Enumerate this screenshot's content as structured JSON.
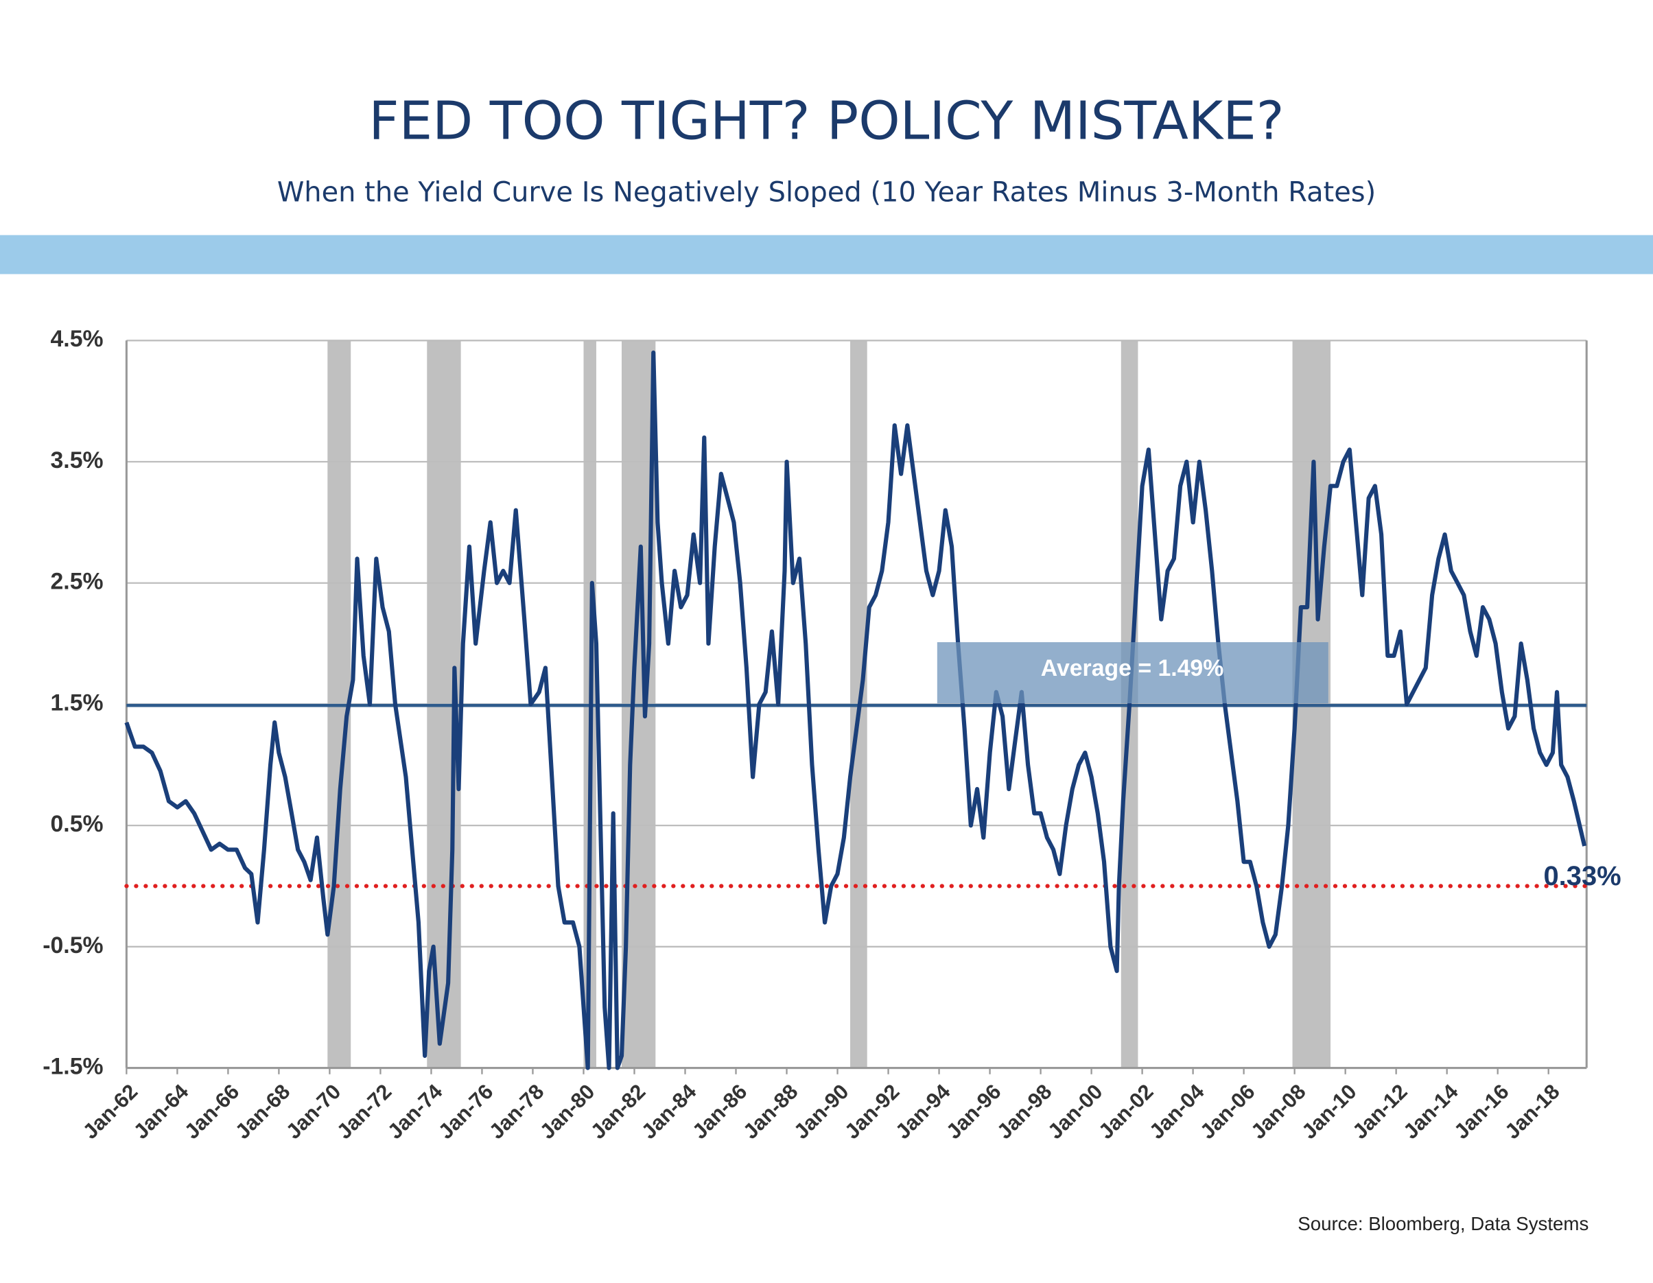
{
  "chart_data": {
    "type": "line",
    "title": "FED TOO TIGHT? POLICY MISTAKE?",
    "subtitle": "When the Yield Curve Is Negatively Sloped (10 Year Rates Minus 3-Month Rates)",
    "source": "Source:  Bloomberg, Data Systems",
    "xlim": [
      "Jan-62",
      "Jul-19"
    ],
    "xticks": [
      "Jan-62",
      "Jan-64",
      "Jan-66",
      "Jan-68",
      "Jan-70",
      "Jan-72",
      "Jan-74",
      "Jan-76",
      "Jan-78",
      "Jan-80",
      "Jan-82",
      "Jan-84",
      "Jan-86",
      "Jan-88",
      "Jan-90",
      "Jan-92",
      "Jan-94",
      "Jan-96",
      "Jan-98",
      "Jan-00",
      "Jan-02",
      "Jan-04",
      "Jan-06",
      "Jan-08",
      "Jan-10",
      "Jan-12",
      "Jan-14",
      "Jan-16",
      "Jan-18"
    ],
    "ylim": [
      -1.5,
      4.5
    ],
    "yticks": [
      {
        "value": -1.5,
        "label": "-1.5%"
      },
      {
        "value": -0.5,
        "label": "-0.5%"
      },
      {
        "value": 0.5,
        "label": "0.5%"
      },
      {
        "value": 1.5,
        "label": "1.5%"
      },
      {
        "value": 2.5,
        "label": "2.5%"
      },
      {
        "value": 3.5,
        "label": "3.5%"
      },
      {
        "value": 4.5,
        "label": "4.5%"
      }
    ],
    "grid": true,
    "recessions": [
      [
        "Dec-69",
        "Nov-70"
      ],
      [
        "Nov-73",
        "Mar-75"
      ],
      [
        "Jan-80",
        "Jul-80"
      ],
      [
        "Jul-81",
        "Nov-82"
      ],
      [
        "Jul-90",
        "Mar-91"
      ],
      [
        "Mar-01",
        "Nov-01"
      ],
      [
        "Dec-07",
        "Jun-09"
      ]
    ],
    "recession_color": "#c0c0c0",
    "reference_lines": [
      {
        "value": 1.49,
        "color": "#2e5b8c",
        "style": "solid"
      },
      {
        "value": 0,
        "color": "#e02020",
        "style": "dotted"
      }
    ],
    "annotations": [
      {
        "text": "Average = 1.49%"
      },
      {
        "text": "0.33%"
      }
    ],
    "series": [
      {
        "color": "#1a3f7a",
        "x": [
          "Jan-62",
          "May-62",
          "Sep-62",
          "Jan-63",
          "May-63",
          "Sep-63",
          "Jan-64",
          "May-64",
          "Sep-64",
          "Jan-65",
          "May-65",
          "Sep-65",
          "Jan-66",
          "May-66",
          "Sep-66",
          "Dec-66",
          "Mar-67",
          "Jun-67",
          "Sep-67",
          "Nov-67",
          "Jan-68",
          "Apr-68",
          "Jul-68",
          "Oct-68",
          "Jan-69",
          "Apr-69",
          "Jul-69",
          "Oct-69",
          "Dec-69",
          "Mar-70",
          "Jun-70",
          "Sep-70",
          "Dec-70",
          "Feb-71",
          "May-71",
          "Aug-71",
          "Nov-71",
          "Feb-72",
          "May-72",
          "Aug-72",
          "Jan-73",
          "Apr-73",
          "Jul-73",
          "Oct-73",
          "Dec-73",
          "Feb-74",
          "May-74",
          "Sep-74",
          "Nov-74",
          "Dec-74",
          "Feb-75",
          "Apr-75",
          "Jul-75",
          "Oct-75",
          "Feb-76",
          "May-76",
          "Aug-76",
          "Nov-76",
          "Feb-77",
          "May-77",
          "Sep-77",
          "Dec-77",
          "Apr-78",
          "Jul-78",
          "Oct-78",
          "Jan-79",
          "Apr-79",
          "Aug-79",
          "Nov-79",
          "Jan-80",
          "Mar-80",
          "May-80",
          "Jul-80",
          "Sep-80",
          "Nov-80",
          "Jan-81",
          "Mar-81",
          "May-81",
          "Jul-81",
          "Sep-81",
          "Nov-81",
          "Jan-82",
          "Apr-82",
          "Jun-82",
          "Aug-82",
          "Oct-82",
          "Dec-82",
          "Feb-83",
          "May-83",
          "Aug-83",
          "Nov-83",
          "Feb-84",
          "May-84",
          "Aug-84",
          "Oct-84",
          "Dec-84",
          "Mar-85",
          "Jun-85",
          "Sep-85",
          "Dec-85",
          "Mar-86",
          "Jun-86",
          "Sep-86",
          "Dec-86",
          "Mar-87",
          "Jun-87",
          "Sep-87",
          "Dec-87",
          "Jan-88",
          "Apr-88",
          "Jul-88",
          "Oct-88",
          "Jan-89",
          "Apr-89",
          "Jul-89",
          "Oct-89",
          "Jan-90",
          "Apr-90",
          "Jul-90",
          "Oct-90",
          "Jan-91",
          "Apr-91",
          "Jul-91",
          "Oct-91",
          "Jan-92",
          "Apr-92",
          "Jul-92",
          "Oct-92",
          "Jan-93",
          "Apr-93",
          "Jul-93",
          "Oct-93",
          "Jan-94",
          "Apr-94",
          "Jul-94",
          "Oct-94",
          "Jan-95",
          "Apr-95",
          "Jul-95",
          "Oct-95",
          "Jan-96",
          "Apr-96",
          "Jul-96",
          "Oct-96",
          "Jan-97",
          "Apr-97",
          "Jul-97",
          "Oct-97",
          "Jan-98",
          "Apr-98",
          "Jul-98",
          "Oct-98",
          "Jan-99",
          "Apr-99",
          "Jul-99",
          "Oct-99",
          "Jan-00",
          "Apr-00",
          "Jul-00",
          "Oct-00",
          "Jan-01",
          "Feb-01",
          "Apr-01",
          "Jul-01",
          "Oct-01",
          "Jan-02",
          "Apr-02",
          "Jul-02",
          "Oct-02",
          "Jan-03",
          "Apr-03",
          "Jul-03",
          "Oct-03",
          "Jan-04",
          "Apr-04",
          "Jul-04",
          "Oct-04",
          "Jan-05",
          "Apr-05",
          "Jul-05",
          "Oct-05",
          "Jan-06",
          "Apr-06",
          "Jul-06",
          "Oct-06",
          "Jan-07",
          "Apr-07",
          "Jul-07",
          "Oct-07",
          "Jan-08",
          "Apr-08",
          "Jul-08",
          "Oct-08",
          "Dec-08",
          "Mar-09",
          "Jun-09",
          "Sep-09",
          "Dec-09",
          "Mar-10",
          "Jun-10",
          "Sep-10",
          "Dec-10",
          "Mar-11",
          "Jun-11",
          "Sep-11",
          "Dec-11",
          "Mar-12",
          "Jun-12",
          "Sep-12",
          "Dec-12",
          "Mar-13",
          "Jun-13",
          "Sep-13",
          "Dec-13",
          "Mar-14",
          "Jun-14",
          "Sep-14",
          "Dec-14",
          "Mar-15",
          "Jun-15",
          "Sep-15",
          "Dec-15",
          "Mar-16",
          "Jun-16",
          "Sep-16",
          "Dec-16",
          "Mar-17",
          "Jun-17",
          "Sep-17",
          "Dec-17",
          "Mar-18",
          "May-18",
          "Jul-18",
          "Oct-18",
          "Jan-19",
          "Jun-19"
        ],
        "values": [
          1.35,
          1.15,
          1.15,
          1.1,
          0.95,
          0.7,
          0.65,
          0.7,
          0.6,
          0.45,
          0.3,
          0.35,
          0.3,
          0.3,
          0.15,
          0.1,
          -0.3,
          0.3,
          1.0,
          1.35,
          1.1,
          0.9,
          0.6,
          0.3,
          0.2,
          0.05,
          0.4,
          -0.1,
          -0.4,
          0.0,
          0.8,
          1.4,
          1.7,
          2.7,
          1.9,
          1.5,
          2.7,
          2.3,
          2.1,
          1.5,
          0.9,
          0.3,
          -0.3,
          -1.4,
          -0.7,
          -0.5,
          -1.3,
          -0.8,
          0.3,
          1.8,
          0.8,
          2.0,
          2.8,
          2.0,
          2.6,
          3.0,
          2.5,
          2.6,
          2.5,
          3.1,
          2.2,
          1.5,
          1.6,
          1.8,
          0.9,
          0.0,
          -0.3,
          -0.3,
          -0.5,
          -1.0,
          -1.5,
          2.5,
          2.0,
          0.5,
          -1.0,
          -1.5,
          0.6,
          -1.5,
          -1.4,
          -0.5,
          1.0,
          1.8,
          2.8,
          1.4,
          2.0,
          4.4,
          3.0,
          2.5,
          2.0,
          2.6,
          2.3,
          2.4,
          2.9,
          2.5,
          3.7,
          2.0,
          2.8,
          3.4,
          3.2,
          3.0,
          2.5,
          1.8,
          0.9,
          1.5,
          1.6,
          2.1,
          1.5,
          2.6,
          3.5,
          2.5,
          2.7,
          2.0,
          1.0,
          0.3,
          -0.3,
          0.0,
          0.1,
          0.4,
          0.9,
          1.3,
          1.7,
          2.3,
          2.4,
          2.6,
          3.0,
          3.8,
          3.4,
          3.8,
          3.4,
          3.0,
          2.6,
          2.4,
          2.6,
          3.1,
          2.8,
          2.0,
          1.3,
          0.5,
          0.8,
          0.4,
          1.1,
          1.6,
          1.4,
          0.8,
          1.2,
          1.6,
          1.0,
          0.6,
          0.6,
          0.4,
          0.3,
          0.1,
          0.5,
          0.8,
          1.0,
          1.1,
          0.9,
          0.6,
          0.2,
          -0.5,
          -0.7,
          0.0,
          0.7,
          1.5,
          2.4,
          3.3,
          3.6,
          2.9,
          2.2,
          2.6,
          2.7,
          3.3,
          3.5,
          3.0,
          3.5,
          3.1,
          2.6,
          2.0,
          1.5,
          1.1,
          0.7,
          0.2,
          0.2,
          0.0,
          -0.3,
          -0.5,
          -0.4,
          0.0,
          0.5,
          1.3,
          2.3,
          2.3,
          3.5,
          2.2,
          2.8,
          3.3,
          3.3,
          3.5,
          3.6,
          3.0,
          2.4,
          3.2,
          3.3,
          2.9,
          1.9,
          1.9,
          2.1,
          1.5,
          1.6,
          1.7,
          1.8,
          2.4,
          2.7,
          2.9,
          2.6,
          2.5,
          2.4,
          2.1,
          1.9,
          2.3,
          2.2,
          2.0,
          1.6,
          1.3,
          1.4,
          2.0,
          1.7,
          1.3,
          1.1,
          1.0,
          1.1,
          1.6,
          1.0,
          0.9,
          0.7,
          0.33
        ]
      }
    ]
  }
}
